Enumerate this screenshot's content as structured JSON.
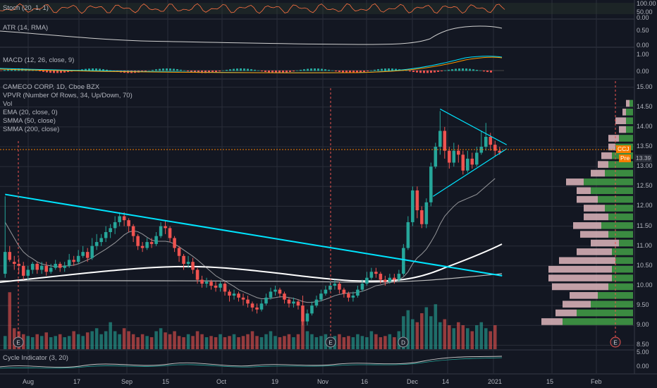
{
  "colors": {
    "bg": "#131722",
    "grid": "#2a2e39",
    "up": "#26a69a",
    "down": "#ef5350",
    "vpUp": "#43a047",
    "vpDown": "#e0b7bd",
    "trend": "#00e5ff",
    "ema": "#cdcdcd",
    "smma50": "#ffffff",
    "smma200": "#bfbfbf",
    "stoch": "#ff7043",
    "price": "#f57c00"
  },
  "indicators": {
    "stoch": "Stoch (20, 1, 1)",
    "atr": "ATR (14, RMA)",
    "macd": "MACD (12, 26, close, 9)",
    "cycle": "Cycle Indicator (3, 20)"
  },
  "main_legend": {
    "title": "CAMECO CORP, 1D, Cboe BZX",
    "vpvr": "VPVR (Number Of Rows, 34, Up/Down, 70)",
    "vol": "Vol",
    "ema": "EMA (20, close, 0)",
    "smma50": "SMMA (50, close)",
    "smma200": "SMMA (200, close)"
  },
  "price_axis": {
    "stoch_ticks": [
      "100.00",
      "50.00",
      "0.00"
    ],
    "atr_ticks": [
      "0.50",
      "0.00"
    ],
    "macd_ticks": [
      "1.00",
      "0.00"
    ],
    "main_ticks": [
      "15.00",
      "14.50",
      "14.00",
      "13.50",
      "13.00",
      "12.50",
      "12.00",
      "11.50",
      "11.00",
      "10.50",
      "10.00",
      "9.50",
      "9.00",
      "8.50"
    ],
    "cycle_ticks": [
      "5.00",
      "0.00"
    ]
  },
  "price_tag": {
    "symbol": "CCJ",
    "pre": "Pre",
    "pre_value": "13.39"
  },
  "date_axis": [
    "Aug",
    "17",
    "Sep",
    "15",
    "Oct",
    "19",
    "Nov",
    "16",
    "Dec",
    "14",
    "2021",
    "15",
    "Feb"
  ],
  "events": {
    "e1": "E",
    "e2": "E",
    "d": "D",
    "e3": "E"
  },
  "chart_data": {
    "type": "candlestick",
    "title": "CAMECO CORP, 1D, Cboe BZX",
    "ylim": [
      8.4,
      15.1
    ],
    "candles": [
      [
        10.3,
        10.85,
        10.2,
        12.25
      ],
      [
        10.85,
        10.65,
        10.6,
        11.0
      ],
      [
        10.6,
        10.55,
        10.4,
        10.75
      ],
      [
        10.55,
        10.5,
        10.3,
        10.7
      ],
      [
        10.5,
        10.25,
        10.15,
        10.6
      ],
      [
        10.25,
        10.4,
        10.15,
        10.5
      ],
      [
        10.4,
        10.55,
        10.3,
        10.6
      ],
      [
        10.55,
        10.4,
        10.3,
        10.6
      ],
      [
        10.4,
        10.5,
        10.3,
        10.6
      ],
      [
        10.5,
        10.35,
        10.25,
        10.6
      ],
      [
        10.35,
        10.45,
        10.3,
        10.55
      ],
      [
        10.45,
        10.55,
        10.4,
        10.65
      ],
      [
        10.55,
        10.45,
        10.35,
        10.6
      ],
      [
        10.45,
        10.5,
        10.35,
        10.6
      ],
      [
        10.5,
        10.65,
        10.45,
        10.8
      ],
      [
        10.65,
        10.6,
        10.5,
        10.75
      ],
      [
        10.6,
        10.75,
        10.55,
        10.9
      ],
      [
        10.75,
        10.85,
        10.7,
        11.0
      ],
      [
        10.85,
        10.7,
        10.6,
        10.95
      ],
      [
        10.7,
        11.0,
        10.65,
        11.2
      ],
      [
        11.0,
        11.1,
        10.9,
        11.3
      ],
      [
        11.1,
        11.2,
        11.0,
        11.3
      ],
      [
        11.2,
        11.35,
        11.1,
        11.5
      ],
      [
        11.35,
        11.45,
        11.2,
        11.55
      ],
      [
        11.45,
        11.6,
        11.3,
        11.75
      ],
      [
        11.6,
        11.75,
        11.5,
        11.85
      ],
      [
        11.75,
        11.65,
        11.5,
        11.85
      ],
      [
        11.65,
        11.5,
        11.35,
        11.7
      ],
      [
        11.5,
        11.25,
        11.1,
        11.55
      ],
      [
        11.25,
        11.0,
        10.9,
        11.3
      ],
      [
        11.0,
        10.95,
        10.85,
        11.1
      ],
      [
        10.95,
        11.1,
        10.9,
        11.2
      ],
      [
        11.1,
        11.05,
        10.95,
        11.2
      ],
      [
        11.05,
        11.25,
        11.0,
        11.35
      ],
      [
        11.25,
        11.5,
        11.2,
        11.6
      ],
      [
        11.5,
        11.45,
        11.3,
        11.65
      ],
      [
        11.45,
        11.2,
        11.1,
        11.5
      ],
      [
        11.2,
        10.95,
        10.85,
        11.25
      ],
      [
        10.95,
        10.75,
        10.6,
        11.0
      ],
      [
        10.75,
        10.55,
        10.4,
        10.8
      ],
      [
        10.55,
        10.6,
        10.45,
        10.75
      ],
      [
        10.6,
        10.4,
        10.3,
        10.7
      ],
      [
        10.4,
        10.15,
        10.05,
        10.45
      ],
      [
        10.15,
        10.05,
        9.95,
        10.25
      ],
      [
        10.05,
        10.1,
        9.95,
        10.2
      ],
      [
        10.1,
        10.0,
        9.9,
        10.15
      ],
      [
        10.0,
        9.95,
        9.85,
        10.1
      ],
      [
        9.95,
        10.05,
        9.85,
        10.1
      ],
      [
        10.05,
        9.85,
        9.75,
        10.1
      ],
      [
        9.85,
        9.75,
        9.6,
        9.9
      ],
      [
        9.75,
        9.8,
        9.65,
        9.9
      ],
      [
        9.8,
        9.7,
        9.6,
        9.85
      ],
      [
        9.7,
        9.65,
        9.5,
        9.8
      ],
      [
        9.65,
        9.55,
        9.45,
        9.75
      ],
      [
        9.55,
        9.45,
        9.35,
        9.6
      ],
      [
        9.45,
        9.4,
        9.3,
        9.55
      ],
      [
        9.4,
        9.55,
        9.35,
        9.65
      ],
      [
        9.55,
        9.7,
        9.5,
        9.8
      ],
      [
        9.7,
        9.85,
        9.65,
        9.95
      ],
      [
        9.85,
        9.9,
        9.75,
        10.0
      ],
      [
        9.9,
        9.8,
        9.7,
        9.95
      ],
      [
        9.8,
        9.65,
        9.55,
        9.85
      ],
      [
        9.65,
        9.55,
        9.45,
        9.7
      ],
      [
        9.55,
        9.6,
        9.45,
        9.7
      ],
      [
        9.6,
        9.5,
        9.4,
        9.65
      ],
      [
        9.5,
        9.1,
        9.0,
        9.75
      ],
      [
        9.1,
        9.3,
        9.0,
        9.4
      ],
      [
        9.3,
        9.5,
        9.25,
        9.6
      ],
      [
        9.5,
        9.65,
        9.45,
        9.75
      ],
      [
        9.65,
        9.8,
        9.6,
        9.9
      ],
      [
        9.8,
        9.9,
        9.75,
        10.0
      ],
      [
        9.9,
        10.0,
        9.85,
        10.1
      ],
      [
        10.0,
        10.05,
        9.9,
        10.15
      ],
      [
        10.05,
        9.9,
        9.8,
        10.1
      ],
      [
        9.9,
        9.8,
        9.7,
        9.95
      ],
      [
        9.8,
        9.7,
        9.6,
        9.85
      ],
      [
        9.7,
        9.75,
        9.6,
        9.85
      ],
      [
        9.75,
        9.9,
        9.7,
        10.0
      ],
      [
        9.9,
        10.05,
        9.85,
        10.15
      ],
      [
        10.05,
        10.2,
        10.0,
        10.35
      ],
      [
        10.2,
        10.35,
        10.15,
        10.45
      ],
      [
        10.35,
        10.3,
        10.2,
        10.45
      ],
      [
        10.3,
        10.15,
        10.05,
        10.35
      ],
      [
        10.15,
        10.1,
        10.0,
        10.25
      ],
      [
        10.1,
        10.2,
        10.05,
        10.3
      ],
      [
        10.2,
        10.15,
        10.05,
        10.3
      ],
      [
        10.15,
        10.3,
        10.1,
        10.4
      ],
      [
        10.3,
        10.95,
        10.25,
        11.05
      ],
      [
        10.95,
        11.6,
        10.9,
        11.75
      ],
      [
        11.6,
        12.4,
        11.5,
        12.5
      ],
      [
        12.4,
        11.9,
        11.7,
        12.5
      ],
      [
        11.9,
        11.55,
        11.45,
        12.0
      ],
      [
        11.55,
        12.1,
        11.45,
        12.2
      ],
      [
        12.1,
        13.0,
        12.0,
        13.1
      ],
      [
        13.0,
        13.5,
        12.95,
        13.6
      ],
      [
        13.5,
        13.9,
        13.3,
        14.4
      ],
      [
        13.9,
        13.4,
        13.2,
        14.0
      ],
      [
        13.4,
        13.1,
        12.95,
        13.5
      ],
      [
        13.1,
        13.4,
        13.0,
        13.6
      ],
      [
        13.4,
        13.3,
        13.1,
        13.55
      ],
      [
        13.3,
        12.9,
        12.8,
        13.4
      ],
      [
        12.9,
        13.2,
        12.85,
        13.4
      ],
      [
        13.2,
        13.05,
        12.95,
        13.35
      ],
      [
        13.05,
        13.35,
        13.0,
        13.5
      ],
      [
        13.35,
        13.5,
        13.3,
        13.9
      ],
      [
        13.5,
        13.75,
        13.4,
        14.1
      ],
      [
        13.75,
        13.55,
        13.4,
        13.85
      ],
      [
        13.55,
        13.4,
        13.25,
        13.65
      ],
      [
        13.4,
        13.35,
        13.3,
        13.5
      ]
    ],
    "volume": [
      0.22,
      0.95,
      0.35,
      0.3,
      0.25,
      0.22,
      0.2,
      0.25,
      0.22,
      0.28,
      0.2,
      0.22,
      0.25,
      0.2,
      0.22,
      0.3,
      0.25,
      0.22,
      0.28,
      0.3,
      0.35,
      0.25,
      0.3,
      0.45,
      0.3,
      0.25,
      0.35,
      0.3,
      0.25,
      0.2,
      0.25,
      0.22,
      0.2,
      0.3,
      0.35,
      0.28,
      0.25,
      0.3,
      0.22,
      0.2,
      0.25,
      0.22,
      0.3,
      0.25,
      0.2,
      0.22,
      0.2,
      0.25,
      0.2,
      0.22,
      0.25,
      0.2,
      0.22,
      0.25,
      0.3,
      0.22,
      0.2,
      0.25,
      0.3,
      0.22,
      0.2,
      0.22,
      0.25,
      0.2,
      0.25,
      0.5,
      0.3,
      0.25,
      0.2,
      0.22,
      0.25,
      0.2,
      0.22,
      0.25,
      0.2,
      0.22,
      0.2,
      0.25,
      0.22,
      0.2,
      0.3,
      0.25,
      0.2,
      0.22,
      0.25,
      0.2,
      0.3,
      0.55,
      0.65,
      0.5,
      0.45,
      0.6,
      0.7,
      0.55,
      0.75,
      0.45,
      0.5,
      0.4,
      0.35,
      0.45,
      0.4,
      0.35,
      0.3,
      0.4,
      0.45,
      0.35,
      0.3,
      0.4
    ],
    "ema20": [
      11.6,
      11.4,
      11.2,
      11.0,
      10.85,
      10.75,
      10.68,
      10.6,
      10.55,
      10.52,
      10.5,
      10.48,
      10.48,
      10.5,
      10.5,
      10.52,
      10.55,
      10.6,
      10.65,
      10.7,
      10.78,
      10.85,
      10.92,
      11.0,
      11.08,
      11.18,
      11.28,
      11.35,
      11.38,
      11.36,
      11.3,
      11.22,
      11.15,
      11.12,
      11.12,
      11.12,
      11.1,
      11.05,
      10.98,
      10.9,
      10.82,
      10.74,
      10.65,
      10.55,
      10.45,
      10.35,
      10.25,
      10.18,
      10.12,
      10.05,
      9.98,
      9.9,
      9.85,
      9.8,
      9.75,
      9.7,
      9.67,
      9.67,
      9.68,
      9.7,
      9.72,
      9.72,
      9.7,
      9.68,
      9.65,
      9.6,
      9.58,
      9.58,
      9.6,
      9.62,
      9.66,
      9.7,
      9.75,
      9.78,
      9.8,
      9.82,
      9.82,
      9.83,
      9.86,
      9.9,
      9.95,
      10.0,
      10.02,
      10.05,
      10.08,
      10.1,
      10.15,
      10.22,
      10.35,
      10.55,
      10.7,
      10.8,
      10.92,
      11.1,
      11.3,
      11.55,
      11.75,
      11.88,
      12.0,
      12.1,
      12.15,
      12.2,
      12.25,
      12.3,
      12.4,
      12.5,
      12.6,
      12.7
    ],
    "trendline": [
      [
        0,
        12.3
      ],
      [
        107,
        10.25
      ]
    ],
    "triangle_top": [
      [
        95,
        14.45
      ],
      [
        108,
        13.55
      ]
    ],
    "triangle_bottom": [
      [
        95,
        12.25
      ],
      [
        108,
        13.45
      ]
    ]
  }
}
